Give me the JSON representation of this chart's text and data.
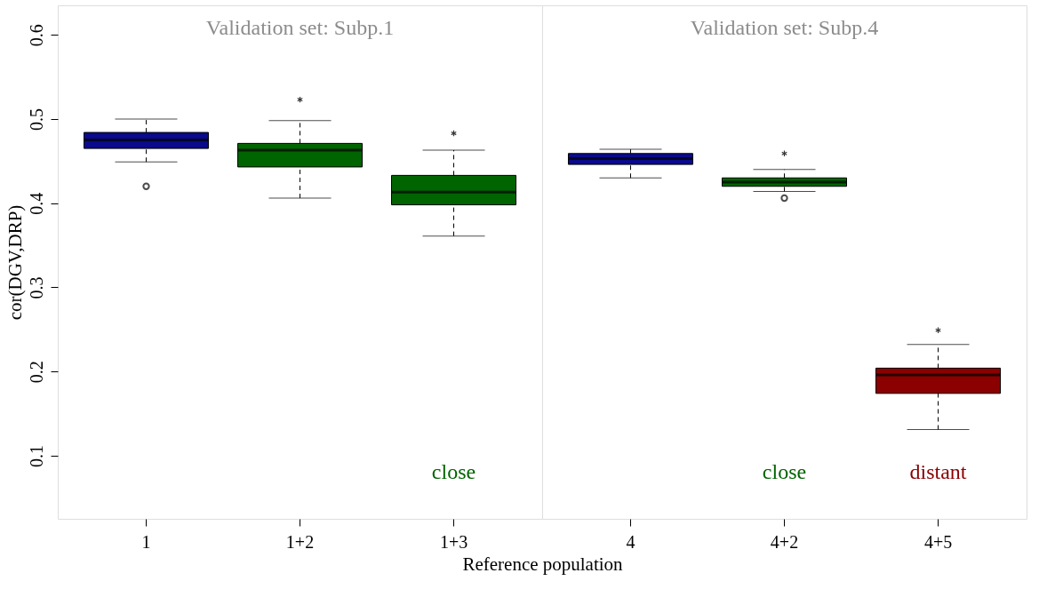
{
  "chart_data": [
    {
      "type": "box",
      "title": "Validation set: Subp.1",
      "xlabel": "Reference population",
      "ylabel": "cor(DGV,DRP)",
      "categories": [
        "1",
        "1+2",
        "1+3"
      ],
      "colors": [
        "#0a0a8c",
        "#006400",
        "#006400"
      ],
      "boxes": [
        {
          "low": 0.449,
          "q1": 0.465,
          "median": 0.475,
          "q3": 0.484,
          "high": 0.5,
          "outliers": [
            0.42
          ]
        },
        {
          "low": 0.406,
          "q1": 0.443,
          "median": 0.463,
          "q3": 0.471,
          "high": 0.498
        },
        {
          "low": 0.361,
          "q1": 0.398,
          "median": 0.413,
          "q3": 0.433,
          "high": 0.463
        }
      ],
      "ylim": [
        0.025,
        0.635
      ],
      "yticks": [
        0.1,
        0.2,
        0.3,
        0.4,
        0.5,
        0.6
      ],
      "series": [
        {
          "type": "scatter",
          "marker": "cross",
          "color": "#333333",
          "x": [
            "1+2",
            "1+3"
          ],
          "values": [
            0.523,
            0.483
          ]
        }
      ],
      "annotations": [
        "close"
      ]
    },
    {
      "type": "box",
      "title": "Validation set: Subp.4",
      "categories": [
        "4",
        "4+2",
        "4+5"
      ],
      "colors": [
        "#0a0a8c",
        "#006400",
        "#8b0000"
      ],
      "boxes": [
        {
          "low": 0.43,
          "q1": 0.446,
          "median": 0.453,
          "q3": 0.459,
          "high": 0.464
        },
        {
          "low": 0.414,
          "q1": 0.42,
          "median": 0.425,
          "q3": 0.43,
          "high": 0.44,
          "outliers": [
            0.406
          ]
        },
        {
          "low": 0.131,
          "q1": 0.174,
          "median": 0.196,
          "q3": 0.204,
          "high": 0.232
        }
      ],
      "ylim": [
        0.025,
        0.635
      ],
      "yticks": [
        0.1,
        0.2,
        0.3,
        0.4,
        0.5,
        0.6
      ],
      "tick_labels": "x",
      "series": [
        {
          "type": "scatter",
          "marker": "cross",
          "color": "#333333",
          "x": [
            "4+2",
            "4+5"
          ],
          "values": [
            0.459,
            0.249
          ]
        }
      ],
      "annotations": [
        "close",
        "distant"
      ]
    }
  ]
}
